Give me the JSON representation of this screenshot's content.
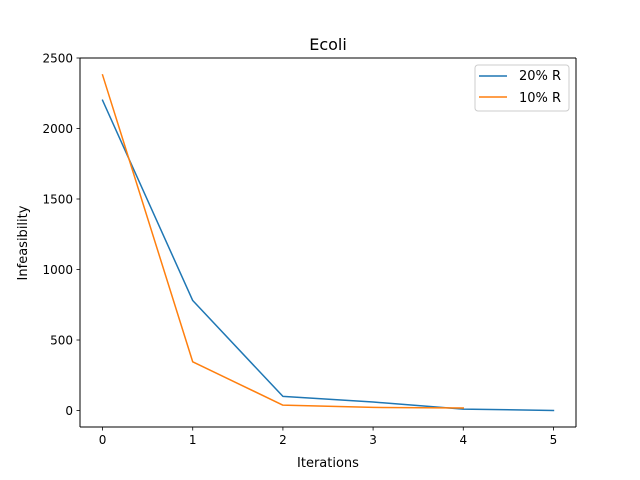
{
  "chart_data": {
    "type": "line",
    "title": "Ecoli",
    "xlabel": "Iterations",
    "ylabel": "Infeasibility",
    "xlim": [
      -0.25,
      5.25
    ],
    "ylim": [
      -117,
      2500
    ],
    "xticks": [
      "0",
      "1",
      "2",
      "3",
      "4",
      "5"
    ],
    "yticks": [
      "0",
      "500",
      "1000",
      "1500",
      "2000",
      "2500"
    ],
    "grid": false,
    "legend_position": "top-right",
    "series": [
      {
        "name": "20% R",
        "color": "#1f77b4",
        "x": [
          0,
          1,
          2,
          3,
          4,
          5
        ],
        "y": [
          2200,
          780,
          100,
          60,
          10,
          0
        ]
      },
      {
        "name": "10% R",
        "color": "#ff7f0e",
        "x": [
          0,
          1,
          2,
          3,
          4
        ],
        "y": [
          2380,
          345,
          38,
          22,
          18
        ]
      }
    ]
  }
}
